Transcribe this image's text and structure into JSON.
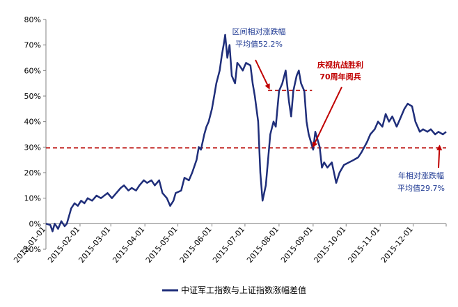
{
  "colors": {
    "series": "#1f2e7a",
    "reference": "#c0201f",
    "annotation_blue": "#1f3a93",
    "annotation_red": "#c00000",
    "axis": "#808080"
  },
  "chart_data": {
    "type": "line",
    "title": "",
    "xlabel": "",
    "ylabel": "",
    "ylim": [
      -10,
      80
    ],
    "y_ticks": [
      -10,
      0,
      10,
      20,
      30,
      40,
      50,
      60,
      70,
      80
    ],
    "y_tick_labels": [
      "-10%",
      "0%",
      "10%",
      "20%",
      "30%",
      "40%",
      "50%",
      "60%",
      "70%",
      "80%"
    ],
    "x_range": [
      "2015-01-01",
      "2015-12-31"
    ],
    "x_tick_labels": [
      "2015-01-01",
      "2015-02-01",
      "2015-03-01",
      "2015-04-01",
      "2015-05-01",
      "2015-06-01",
      "2015-07-01",
      "2015-08-01",
      "2015-09-01",
      "2015-10-01",
      "2015-11-01",
      "2015-12-01"
    ],
    "grid": false,
    "legend_position": "bottom",
    "series": [
      {
        "name": "中证军工指数与上证指数涨幅差值",
        "points": [
          [
            "2015-01-01",
            0
          ],
          [
            "2015-01-05",
            -0.5
          ],
          [
            "2015-01-07",
            -3
          ],
          [
            "2015-01-09",
            0
          ],
          [
            "2015-01-12",
            -2
          ],
          [
            "2015-01-15",
            1
          ],
          [
            "2015-01-18",
            -1
          ],
          [
            "2015-01-20",
            0
          ],
          [
            "2015-01-22",
            3
          ],
          [
            "2015-01-24",
            6
          ],
          [
            "2015-01-27",
            8
          ],
          [
            "2015-01-30",
            7
          ],
          [
            "2015-02-02",
            9
          ],
          [
            "2015-02-05",
            8
          ],
          [
            "2015-02-08",
            10
          ],
          [
            "2015-02-12",
            9
          ],
          [
            "2015-02-16",
            11
          ],
          [
            "2015-02-20",
            10
          ],
          [
            "2015-02-26",
            12
          ],
          [
            "2015-03-02",
            10
          ],
          [
            "2015-03-06",
            12
          ],
          [
            "2015-03-10",
            14
          ],
          [
            "2015-03-13",
            15
          ],
          [
            "2015-03-17",
            13
          ],
          [
            "2015-03-20",
            14
          ],
          [
            "2015-03-24",
            13
          ],
          [
            "2015-03-27",
            15
          ],
          [
            "2015-03-31",
            17
          ],
          [
            "2015-04-03",
            16
          ],
          [
            "2015-04-07",
            17
          ],
          [
            "2015-04-10",
            15
          ],
          [
            "2015-04-14",
            17
          ],
          [
            "2015-04-17",
            12
          ],
          [
            "2015-04-21",
            10
          ],
          [
            "2015-04-24",
            7
          ],
          [
            "2015-04-27",
            9
          ],
          [
            "2015-04-29",
            12
          ],
          [
            "2015-05-04",
            13
          ],
          [
            "2015-05-07",
            18
          ],
          [
            "2015-05-11",
            17
          ],
          [
            "2015-05-14",
            20
          ],
          [
            "2015-05-18",
            25
          ],
          [
            "2015-05-20",
            30
          ],
          [
            "2015-05-22",
            29
          ],
          [
            "2015-05-25",
            35
          ],
          [
            "2015-05-27",
            38
          ],
          [
            "2015-05-29",
            40
          ],
          [
            "2015-06-01",
            45
          ],
          [
            "2015-06-03",
            50
          ],
          [
            "2015-06-05",
            55
          ],
          [
            "2015-06-08",
            60
          ],
          [
            "2015-06-10",
            66
          ],
          [
            "2015-06-12",
            71
          ],
          [
            "2015-06-13",
            74
          ],
          [
            "2015-06-15",
            65
          ],
          [
            "2015-06-17",
            70
          ],
          [
            "2015-06-19",
            58
          ],
          [
            "2015-06-22",
            55
          ],
          [
            "2015-06-24",
            63
          ],
          [
            "2015-06-26",
            62
          ],
          [
            "2015-06-29",
            60
          ],
          [
            "2015-07-02",
            63
          ],
          [
            "2015-07-06",
            62
          ],
          [
            "2015-07-08",
            55
          ],
          [
            "2015-07-10",
            50
          ],
          [
            "2015-07-13",
            40
          ],
          [
            "2015-07-15",
            20
          ],
          [
            "2015-07-17",
            9
          ],
          [
            "2015-07-20",
            15
          ],
          [
            "2015-07-22",
            25
          ],
          [
            "2015-07-24",
            35
          ],
          [
            "2015-07-27",
            40
          ],
          [
            "2015-07-29",
            38
          ],
          [
            "2015-08-01",
            52
          ],
          [
            "2015-08-04",
            55
          ],
          [
            "2015-08-07",
            60
          ],
          [
            "2015-08-10",
            48
          ],
          [
            "2015-08-12",
            42
          ],
          [
            "2015-08-14",
            52
          ],
          [
            "2015-08-17",
            58
          ],
          [
            "2015-08-19",
            60
          ],
          [
            "2015-08-21",
            55
          ],
          [
            "2015-08-24",
            52
          ],
          [
            "2015-08-26",
            40
          ],
          [
            "2015-08-28",
            35
          ],
          [
            "2015-09-01",
            29
          ],
          [
            "2015-09-03",
            36
          ],
          [
            "2015-09-07",
            30
          ],
          [
            "2015-09-09",
            22
          ],
          [
            "2015-09-11",
            24
          ],
          [
            "2015-09-14",
            22
          ],
          [
            "2015-09-18",
            24
          ],
          [
            "2015-09-22",
            16
          ],
          [
            "2015-09-25",
            20
          ],
          [
            "2015-09-29",
            23
          ],
          [
            "2015-10-08",
            25
          ],
          [
            "2015-10-12",
            26
          ],
          [
            "2015-10-15",
            28
          ],
          [
            "2015-10-20",
            32
          ],
          [
            "2015-10-23",
            35
          ],
          [
            "2015-10-27",
            37
          ],
          [
            "2015-10-30",
            40
          ],
          [
            "2015-11-03",
            38
          ],
          [
            "2015-11-06",
            43
          ],
          [
            "2015-11-09",
            40
          ],
          [
            "2015-11-12",
            42
          ],
          [
            "2015-11-16",
            38
          ],
          [
            "2015-11-19",
            41
          ],
          [
            "2015-11-23",
            45
          ],
          [
            "2015-11-26",
            47
          ],
          [
            "2015-11-30",
            46
          ],
          [
            "2015-12-03",
            40
          ],
          [
            "2015-12-07",
            36
          ],
          [
            "2015-12-10",
            37
          ],
          [
            "2015-12-14",
            36
          ],
          [
            "2015-12-17",
            37
          ],
          [
            "2015-12-21",
            35
          ],
          [
            "2015-12-24",
            36
          ],
          [
            "2015-12-28",
            35
          ],
          [
            "2015-12-31",
            36
          ]
        ]
      }
    ],
    "reference_lines": [
      {
        "y": 29.7,
        "x_start": "2015-01-01",
        "x_end": "2015-12-31"
      },
      {
        "y": 52.2,
        "x_start": "2015-07-22",
        "x_end": "2015-08-31"
      }
    ],
    "annotations": [
      {
        "lines": [
          "区间相对涨跌幅",
          "平均值52.2%"
        ],
        "color": "blue",
        "arrow_to": [
          "2015-07-23",
          52.5
        ]
      },
      {
        "lines": [
          "庆视抗战胜利",
          "70周年阅兵"
        ],
        "color": "red",
        "arrow_to": [
          "2015-09-01",
          29.7
        ]
      },
      {
        "lines": [
          "年相对涨跌幅",
          "平均值29.7%"
        ],
        "color": "blue",
        "arrow_to": [
          "2015-12-25",
          29.9
        ]
      }
    ]
  }
}
